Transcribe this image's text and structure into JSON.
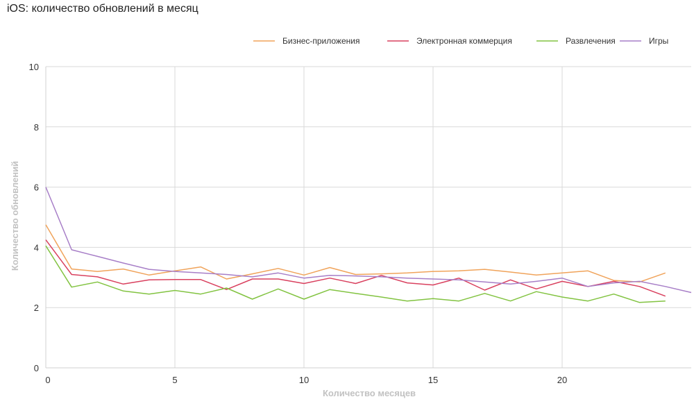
{
  "title": "iOS: количество обновлений в месяц",
  "chart_data": {
    "type": "line",
    "title": "iOS: количество обновлений в месяц",
    "xlabel": "Количество месяцев",
    "ylabel": "Количество обновлений",
    "xlim": [
      0,
      25
    ],
    "ylim": [
      0,
      10
    ],
    "x_ticks": [
      0,
      5,
      10,
      15,
      20
    ],
    "y_ticks": [
      0,
      2,
      4,
      6,
      8,
      10
    ],
    "grid": true,
    "legend_position": "top-right",
    "series": [
      {
        "name": "Бизнес-приложения",
        "color": "#f0a35a",
        "x": [
          0,
          1,
          2,
          3,
          4,
          5,
          6,
          7,
          8,
          9,
          10,
          11,
          12,
          13,
          14,
          15,
          16,
          17,
          18,
          19,
          20,
          21,
          22,
          23,
          24
        ],
        "values": [
          4.75,
          3.28,
          3.2,
          3.28,
          3.08,
          3.22,
          3.35,
          2.95,
          3.12,
          3.3,
          3.08,
          3.33,
          3.1,
          3.12,
          3.15,
          3.2,
          3.22,
          3.27,
          3.18,
          3.08,
          3.15,
          3.22,
          2.9,
          2.85,
          3.15
        ]
      },
      {
        "name": "Электронная коммерция",
        "color": "#d9405e",
        "x": [
          0,
          1,
          2,
          3,
          4,
          5,
          6,
          7,
          8,
          9,
          10,
          11,
          12,
          13,
          14,
          15,
          16,
          17,
          18,
          19,
          20,
          21,
          22,
          23,
          24
        ],
        "values": [
          4.25,
          3.1,
          3.02,
          2.78,
          2.92,
          2.93,
          2.93,
          2.6,
          2.95,
          2.95,
          2.8,
          2.98,
          2.8,
          3.07,
          2.82,
          2.75,
          2.98,
          2.58,
          2.92,
          2.62,
          2.87,
          2.7,
          2.87,
          2.7,
          2.38
        ]
      },
      {
        "name": "Развлечения",
        "color": "#82c341",
        "x": [
          0,
          1,
          2,
          3,
          4,
          5,
          6,
          7,
          8,
          9,
          10,
          11,
          12,
          13,
          14,
          15,
          16,
          17,
          18,
          19,
          20,
          21,
          22,
          23,
          24
        ],
        "values": [
          4.05,
          2.68,
          2.85,
          2.55,
          2.45,
          2.57,
          2.45,
          2.65,
          2.28,
          2.62,
          2.28,
          2.6,
          2.47,
          2.35,
          2.22,
          2.3,
          2.22,
          2.47,
          2.22,
          2.53,
          2.35,
          2.22,
          2.45,
          2.17,
          2.22
        ]
      },
      {
        "name": "Игры",
        "color": "#a77ec7",
        "x": [
          0,
          1,
          2,
          3,
          4,
          5,
          6,
          7,
          8,
          9,
          10,
          11,
          12,
          13,
          14,
          15,
          16,
          17,
          18,
          19,
          20,
          21,
          22,
          23,
          24,
          25
        ],
        "values": [
          6.0,
          3.92,
          3.7,
          3.48,
          3.27,
          3.2,
          3.15,
          3.1,
          3.02,
          3.15,
          2.98,
          3.07,
          3.05,
          3.02,
          2.98,
          2.95,
          2.92,
          2.85,
          2.78,
          2.87,
          2.98,
          2.7,
          2.82,
          2.87,
          2.7,
          2.5
        ]
      }
    ]
  }
}
